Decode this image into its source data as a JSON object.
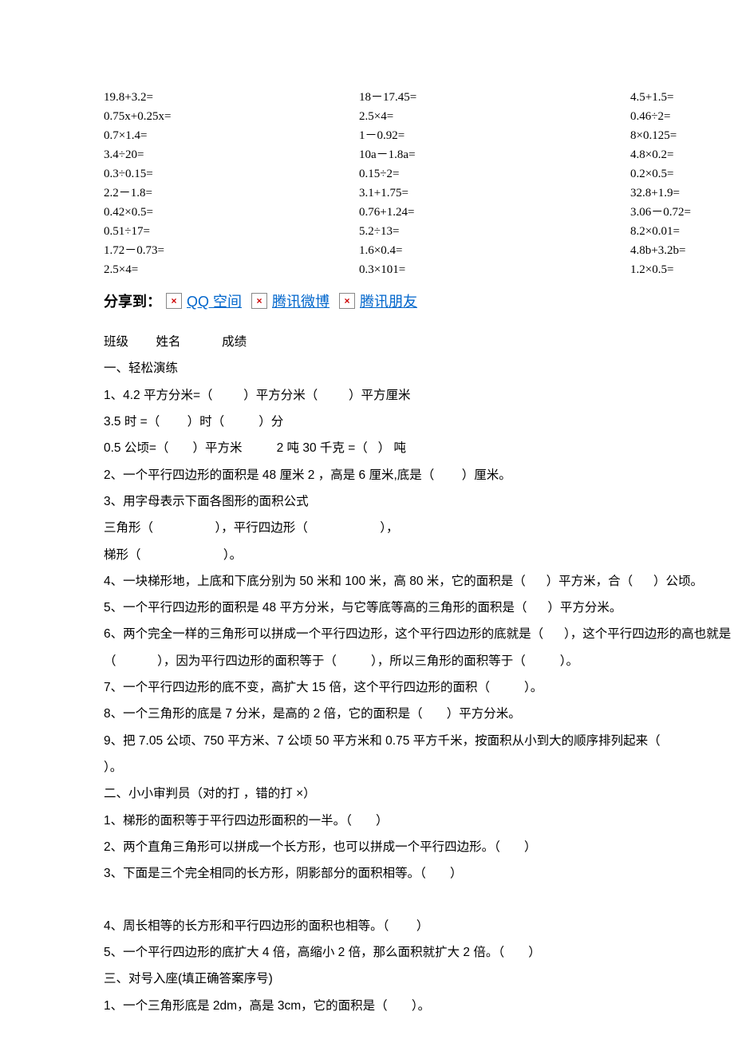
{
  "math": {
    "rows": [
      {
        "c1": "19.8+3.2=",
        "c2": "18－17.45=",
        "c3": "4.5+1.5="
      },
      {
        "c1": "0.75x+0.25x=",
        "c2": "2.5×4=",
        "c3": "0.46÷2="
      },
      {
        "c1": "0.7×1.4=",
        "c2": "1－0.92=",
        "c3": "8×0.125="
      },
      {
        "c1": "3.4÷20=",
        "c2": "10a－1.8a=",
        "c3": "4.8×0.2="
      },
      {
        "c1": "0.3÷0.15=",
        "c2": "0.15÷2=",
        "c3": "0.2×0.5="
      },
      {
        "c1": "2.2－1.8=",
        "c2": "3.1+1.75=",
        "c3": "32.8+1.9="
      },
      {
        "c1": "0.42×0.5=",
        "c2": "0.76+1.24=",
        "c3": "3.06－0.72="
      },
      {
        "c1": "0.51÷17=",
        "c2": "5.2÷13=",
        "c3": "8.2×0.01="
      },
      {
        "c1": "1.72－0.73=",
        "c2": "1.6×0.4=",
        "c3": "4.8b+3.2b="
      },
      {
        "c1": "2.5×4=",
        "c2": "0.3×101=",
        "c3": "1.2×0.5="
      }
    ]
  },
  "share": {
    "label": "分享到：",
    "broken_symbol": "×",
    "links": [
      "QQ 空间",
      "腾讯微博",
      "腾讯朋友"
    ]
  },
  "body": {
    "lines": [
      "班级        姓名            成绩",
      "一、轻松演练",
      "1、4.2 平方分米=（         ）平方分米（         ）平方厘米",
      "3.5 时 =（        ）时（          ）分",
      "0.5 公顷=（       ）平方米          2 吨 30 千克 =（   ） 吨",
      "2、一个平行四边形的面积是 48 厘米 2 ，高是 6 厘米,底是（        ）厘米。",
      "3、用字母表示下面各图形的面积公式",
      "三角形（                  ），平行四边形（                     ），",
      "",
      "梯形（                        ）。",
      "4、一块梯形地，上底和下底分别为 50 米和 100 米，高 80 米，它的面积是（      ）平方米，合（      ）公顷。",
      "5、一个平行四边形的面积是 48 平方分米，与它等底等高的三角形的面积是（      ）平方分米。",
      "6、两个完全一样的三角形可以拼成一个平行四边形，这个平行四边形的底就是（      ），这个平行四边形的高也就是（            ），因为平行四边形的面积等于（          ），所以三角形的面积等于（          ）。",
      "7、一个平行四边形的底不变，高扩大 15 倍，这个平行四边形的面积（          ）。",
      "8、一个三角形的底是 7 分米，是高的 2 倍，它的面积是（       ）平方分米。",
      "9、把 7.05 公顷、750 平方米、7 公顷 50 平方米和 0.75 平方千米，按面积从小到大的顺序排列起来（                                                 ）。",
      "二、小小审判员（对的打 ，错的打 ×）",
      "1、梯形的面积等于平行四边形面积的一半。（       ）",
      "2、两个直角三角形可以拼成一个长方形，也可以拼成一个平行四边形。（       ）",
      "3、下面是三个完全相同的长方形，阴影部分的面积相等。（       ）",
      "GAP",
      "4、周长相等的长方形和平行四边形的面积也相等。（        ）",
      "5、一个平行四边形的底扩大 4 倍，高缩小 2 倍，那么面积就扩大 2 倍。（       ）",
      "三、对号入座(填正确答案序号)",
      "1、一个三角形底是 2dm，高是 3cm，它的面积是（       ）。"
    ]
  }
}
